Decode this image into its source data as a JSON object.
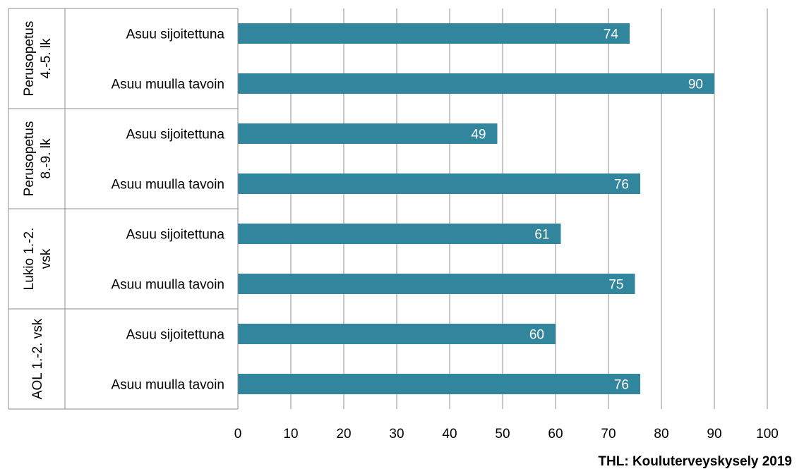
{
  "chart_data": {
    "type": "bar",
    "orientation": "horizontal",
    "title": "",
    "xlabel": "",
    "ylabel": "",
    "xlim": [
      0,
      100
    ],
    "x_ticks": [
      0,
      10,
      20,
      30,
      40,
      50,
      60,
      70,
      80,
      90,
      100
    ],
    "grid": true,
    "bar_color": "#31859c",
    "groups": [
      {
        "label_lines": [
          "Perusopetus",
          "4.-5. lk"
        ],
        "items": [
          {
            "category": "Asuu sijoitettuna",
            "value": 74
          },
          {
            "category": "Asuu muulla tavoin",
            "value": 90
          }
        ]
      },
      {
        "label_lines": [
          "Perusopetus",
          "8.-9. lk"
        ],
        "items": [
          {
            "category": "Asuu sijoitettuna",
            "value": 49
          },
          {
            "category": "Asuu muulla tavoin",
            "value": 76
          }
        ]
      },
      {
        "label_lines": [
          "Lukio 1.-2.",
          "vsk"
        ],
        "items": [
          {
            "category": "Asuu sijoitettuna",
            "value": 61
          },
          {
            "category": "Asuu muulla tavoin",
            "value": 75
          }
        ]
      },
      {
        "label_lines": [
          "AOL 1.-2. vsk"
        ],
        "items": [
          {
            "category": "Asuu sijoitettuna",
            "value": 60
          },
          {
            "category": "Asuu muulla tavoin",
            "value": 76
          }
        ]
      }
    ]
  },
  "source": "THL: Kouluterveyskysely 2019"
}
